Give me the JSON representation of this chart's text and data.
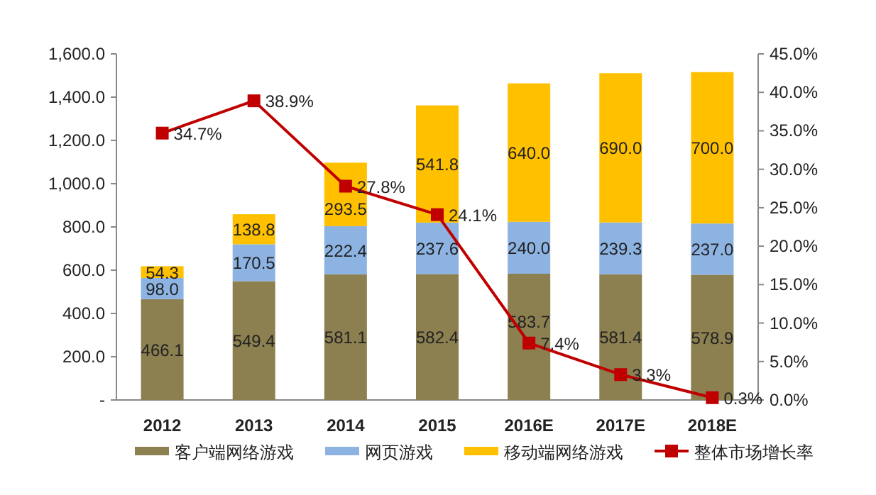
{
  "chart_data": {
    "type": "bar",
    "stacked": true,
    "categories": [
      "2012",
      "2013",
      "2014",
      "2015",
      "2016E",
      "2017E",
      "2018E"
    ],
    "series": [
      {
        "name": "客户端网络游戏",
        "color": "#8c7f50",
        "values": [
          466.1,
          549.4,
          581.1,
          582.4,
          583.7,
          581.4,
          578.9
        ],
        "value_labels": [
          "466.1",
          "549.4",
          "581.1",
          "582.4",
          "583.7",
          "581.4",
          "578.9"
        ]
      },
      {
        "name": "网页游戏",
        "color": "#8db3e2",
        "values": [
          98.0,
          170.5,
          222.4,
          237.6,
          240.0,
          239.3,
          237.0
        ],
        "value_labels": [
          "98.0",
          "170.5",
          "222.4",
          "237.6",
          "240.0",
          "239.3",
          "237.0"
        ]
      },
      {
        "name": "移动端网络游戏",
        "color": "#ffc000",
        "values": [
          54.3,
          138.8,
          293.5,
          541.8,
          640.0,
          690.0,
          700.0
        ],
        "value_labels": [
          "54.3",
          "138.8",
          "293.5",
          "541.8",
          "640.0",
          "690.0",
          "700.0"
        ]
      },
      {
        "name": "整体市场增长率",
        "type": "line",
        "axis": "y2",
        "color": "#c00000",
        "marker": "square",
        "values": [
          34.7,
          38.9,
          27.8,
          24.1,
          7.4,
          3.3,
          0.3
        ],
        "value_labels": [
          "34.7%",
          "38.9%",
          "27.8%",
          "24.1%",
          "7.4%",
          "3.3%",
          "0.3%"
        ]
      }
    ],
    "ylim": [
      0,
      1600
    ],
    "yticks": [
      {
        "value": 0,
        "label": "-"
      },
      {
        "value": 200,
        "label": "200.0"
      },
      {
        "value": 400,
        "label": "400.0"
      },
      {
        "value": 600,
        "label": "600.0"
      },
      {
        "value": 800,
        "label": "800.0"
      },
      {
        "value": 1000,
        "label": "1,000.0"
      },
      {
        "value": 1200,
        "label": "1,200.0"
      },
      {
        "value": 1400,
        "label": "1,400.0"
      },
      {
        "value": 1600,
        "label": "1,600.0"
      }
    ],
    "y2lim": [
      0,
      45
    ],
    "y2ticks": [
      {
        "value": 0,
        "label": "0.0%"
      },
      {
        "value": 5,
        "label": "5.0%"
      },
      {
        "value": 10,
        "label": "10.0%"
      },
      {
        "value": 15,
        "label": "15.0%"
      },
      {
        "value": 20,
        "label": "20.0%"
      },
      {
        "value": 25,
        "label": "25.0%"
      },
      {
        "value": 30,
        "label": "30.0%"
      },
      {
        "value": 35,
        "label": "35.0%"
      },
      {
        "value": 40,
        "label": "40.0%"
      },
      {
        "value": 45,
        "label": "45.0%"
      }
    ],
    "legend": "bottom",
    "grid": false
  }
}
